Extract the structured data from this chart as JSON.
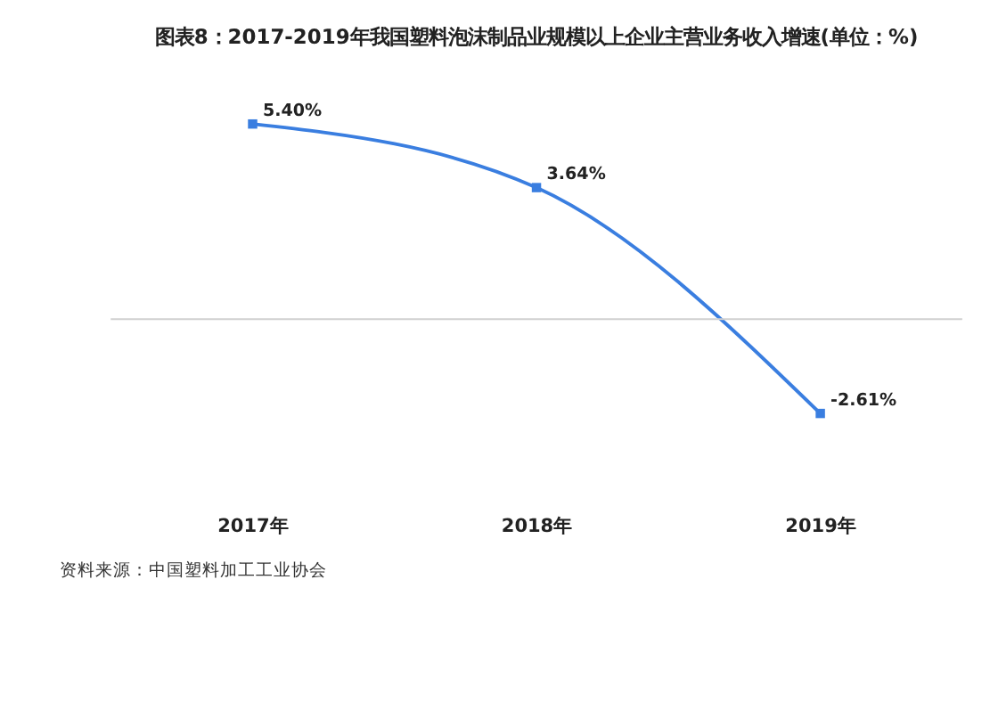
{
  "chart_data": {
    "type": "line",
    "title": "图表8：2017-2019年我国塑料泡沫制品业规模以上企业主营业务收入增速(单位：%)",
    "categories": [
      "2017年",
      "2018年",
      "2019年"
    ],
    "series": [
      {
        "color": "#3a7ee0",
        "values": [
          5.4,
          3.64,
          -2.61
        ],
        "value_labels": [
          "5.40%",
          "3.64%",
          "-2.61%"
        ]
      }
    ],
    "marker": "square",
    "line_style": "solid",
    "grid": false,
    "annotations": [
      "资料来源：中国塑料加工工业协会"
    ]
  }
}
